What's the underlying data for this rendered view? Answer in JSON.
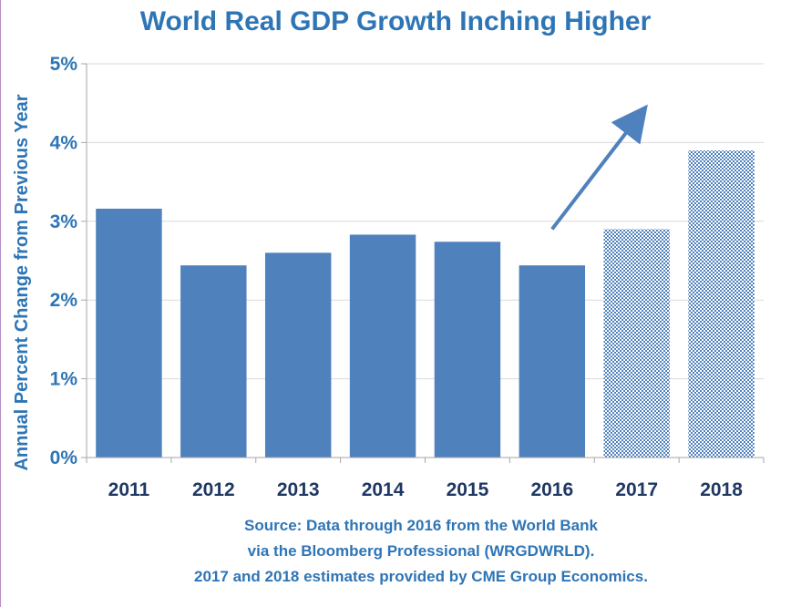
{
  "chart_data": {
    "type": "bar",
    "title": "World Real GDP Growth Inching Higher",
    "ylabel": "Annual Percent Change from Previous Year",
    "xlabel": "",
    "categories": [
      "2011",
      "2012",
      "2013",
      "2014",
      "2015",
      "2016",
      "2017",
      "2018"
    ],
    "values": [
      3.16,
      2.44,
      2.6,
      2.83,
      2.74,
      2.44,
      2.9,
      3.9
    ],
    "estimate_flags": [
      false,
      false,
      false,
      false,
      false,
      false,
      true,
      true
    ],
    "ylim": [
      0,
      5
    ],
    "yticks": [
      0,
      1,
      2,
      3,
      4,
      5
    ],
    "ytick_labels": [
      "0%",
      "1%",
      "2%",
      "3%",
      "4%",
      "5%"
    ],
    "grid": true,
    "bar_color": "#4f81bd",
    "trend_arrow": {
      "from": [
        5.5,
        2.9
      ],
      "to": [
        6.5,
        4.3
      ]
    },
    "source_lines": [
      "Source:  Data through 2016 from the World Bank",
      "via the Bloomberg Professional (WRGDWRLD).",
      "2017 and 2018 estimates provided by CME Group Economics."
    ]
  },
  "colors": {
    "accent": "#2e75b6",
    "bar": "#4f81bd",
    "category_text": "#1f3864",
    "grid": "#d9d9d9"
  }
}
